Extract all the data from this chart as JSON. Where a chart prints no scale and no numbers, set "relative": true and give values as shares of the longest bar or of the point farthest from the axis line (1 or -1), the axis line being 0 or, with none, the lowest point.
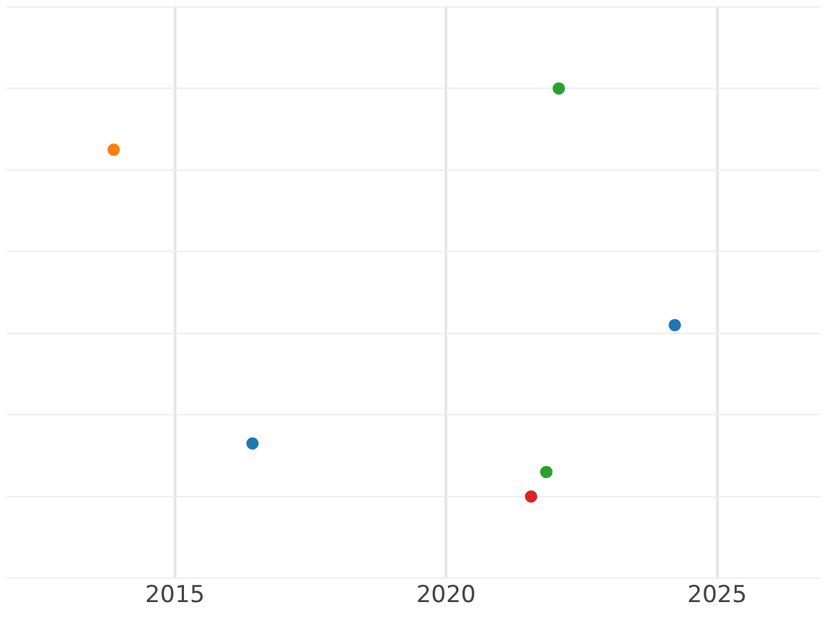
{
  "chart_data": {
    "type": "scatter",
    "relative": true,
    "xlim": [
      2011.9,
      2026.9
    ],
    "xticks": [
      2015,
      2020,
      2025
    ],
    "grid": true,
    "legend": false,
    "marker": "circle",
    "series": [
      {
        "color": "#1f77b4",
        "x": [
          2016.43,
          2024.22
        ],
        "values": [
          0.13,
          0.42
        ]
      },
      {
        "color": "#ff7f0e",
        "x": [
          2013.87
        ],
        "values": [
          0.85
        ]
      },
      {
        "color": "#2ca02c",
        "x": [
          2022.08,
          2021.85
        ],
        "values": [
          1,
          0.06
        ]
      },
      {
        "color": "#d62728",
        "x": [
          2021.57
        ],
        "values": [
          0
        ]
      }
    ]
  }
}
